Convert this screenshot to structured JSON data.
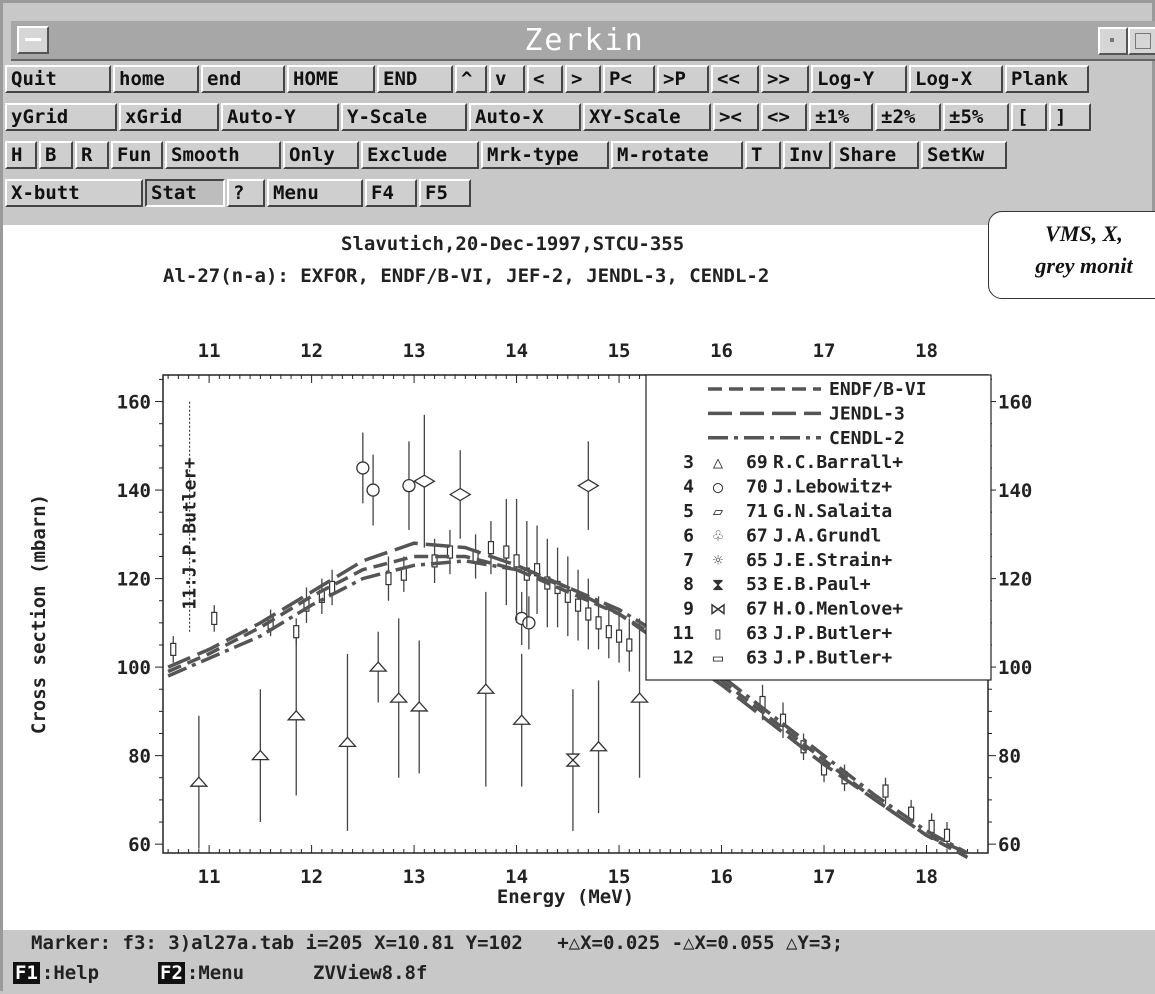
{
  "window": {
    "title": "Zerkin"
  },
  "toolbar": {
    "row1": [
      "Quit",
      "home",
      "end",
      "HOME",
      "END",
      "^",
      "v",
      "<",
      ">",
      "P<",
      ">P",
      "<<",
      ">>",
      "Log-Y",
      "Log-X",
      "Plank"
    ],
    "row2": [
      "yGrid",
      "xGrid",
      "Auto-Y",
      "Y-Scale",
      "Auto-X",
      "XY-Scale",
      "><",
      "<>",
      "±1%",
      "±2%",
      "±5%",
      "[",
      "]"
    ],
    "row3": [
      "H",
      "B",
      "R",
      "Fun",
      "Smooth",
      "Only",
      "Exclude",
      "Mrk-type",
      "M-rotate",
      "T",
      "Inv",
      "Share",
      "SetKw"
    ],
    "row4": [
      "X-butt",
      "Stat",
      "?",
      "Menu",
      "F4",
      "F5"
    ]
  },
  "plot": {
    "header1": "Slavutich,20-Dec-1997,STCU-355",
    "header2": "Al-27(n-a): EXFOR, ENDF/B-VI, JEF-2, JENDL-3, CENDL-2",
    "vertical_marker_label": "11:J.P.Butler+",
    "note": [
      "VMS, X,",
      "grey monit"
    ]
  },
  "chart_data": {
    "type": "scatter",
    "xlabel": "Energy (MeV)",
    "ylabel": "Cross section (mbarn)",
    "xlim": [
      10.55,
      18.6
    ],
    "ylim": [
      58,
      166
    ],
    "x_ticks": [
      "11",
      "12",
      "13",
      "14",
      "15",
      "16",
      "17",
      "18"
    ],
    "y_ticks": [
      "60",
      "80",
      "100",
      "120",
      "140",
      "160"
    ],
    "series": [
      {
        "name": "ENDF/B-VI",
        "style": "dash",
        "x": [
          10.6,
          11.0,
          11.5,
          12.0,
          12.5,
          13.0,
          13.5,
          14.0,
          14.5,
          15.0,
          15.5,
          16.0,
          16.5,
          17.0,
          17.5,
          18.0,
          18.4
        ],
        "y": [
          99,
          103,
          109,
          116,
          122,
          125,
          125,
          122,
          117,
          112,
          105,
          97,
          88,
          79,
          70,
          62,
          57
        ]
      },
      {
        "name": "JENDL-3",
        "style": "longdash",
        "x": [
          10.6,
          11.0,
          11.5,
          12.0,
          12.5,
          13.0,
          13.5,
          14.0,
          14.5,
          15.0,
          15.5,
          16.0,
          16.5,
          17.0,
          17.5,
          18.0,
          18.4
        ],
        "y": [
          100,
          104,
          110,
          117,
          124,
          128,
          127,
          123,
          118,
          112,
          104,
          96,
          87,
          78,
          70,
          62,
          58
        ]
      },
      {
        "name": "CENDL-2",
        "style": "dashdot",
        "x": [
          10.6,
          11.0,
          11.5,
          12.0,
          12.5,
          13.0,
          13.5,
          14.0,
          14.5,
          15.0,
          15.5,
          16.0,
          16.5,
          17.0,
          17.5,
          18.0,
          18.4
        ],
        "y": [
          98,
          102,
          107,
          114,
          120,
          123,
          124,
          122,
          118,
          113,
          106,
          98,
          89,
          80,
          71,
          63,
          58
        ]
      }
    ],
    "legend": [
      {
        "line": "dash",
        "label": "ENDF/B-VI"
      },
      {
        "line": "longdash",
        "label": "JENDL-3"
      },
      {
        "line": "dashdot",
        "label": "CENDL-2"
      },
      {
        "n": "3",
        "symbol": "△",
        "year": "69",
        "label": "R.C.Barrall+"
      },
      {
        "n": "4",
        "symbol": "○",
        "year": "70",
        "label": "J.Lebowitz+"
      },
      {
        "n": "5",
        "symbol": "▱",
        "year": "71",
        "label": "G.N.Salaita"
      },
      {
        "n": "6",
        "symbol": "♧",
        "year": "67",
        "label": "J.A.Grundl"
      },
      {
        "n": "7",
        "symbol": "☼",
        "year": "65",
        "label": "J.E.Strain+"
      },
      {
        "n": "8",
        "symbol": "⧗",
        "year": "53",
        "label": "E.B.Paul+"
      },
      {
        "n": "9",
        "symbol": "⋈",
        "year": "67",
        "label": "H.O.Menlove+"
      },
      {
        "n": "11",
        "symbol": "▯",
        "year": "63",
        "label": "J.P.Butler+"
      },
      {
        "n": "12",
        "symbol": "▭",
        "year": "63",
        "label": "J.P.Butler+"
      }
    ],
    "points": [
      {
        "x": 10.9,
        "y": 74,
        "e": 15,
        "s": "tri"
      },
      {
        "x": 11.5,
        "y": 80,
        "e": 15,
        "s": "tri"
      },
      {
        "x": 11.85,
        "y": 89,
        "e": 18,
        "s": "tri"
      },
      {
        "x": 12.35,
        "y": 83,
        "e": 20,
        "s": "tri"
      },
      {
        "x": 12.85,
        "y": 93,
        "e": 18,
        "s": "tri"
      },
      {
        "x": 13.05,
        "y": 91,
        "e": 15,
        "s": "tri"
      },
      {
        "x": 13.7,
        "y": 95,
        "e": 22,
        "s": "tri"
      },
      {
        "x": 14.05,
        "y": 88,
        "e": 15,
        "s": "tri"
      },
      {
        "x": 14.8,
        "y": 82,
        "e": 15,
        "s": "tri"
      },
      {
        "x": 15.2,
        "y": 93,
        "e": 18,
        "s": "tri"
      },
      {
        "x": 12.5,
        "y": 145,
        "e": 8,
        "s": "circ"
      },
      {
        "x": 12.6,
        "y": 140,
        "e": 8,
        "s": "circ"
      },
      {
        "x": 12.95,
        "y": 141,
        "e": 10,
        "s": "circ"
      },
      {
        "x": 14.05,
        "y": 111,
        "e": 6,
        "s": "circ"
      },
      {
        "x": 14.12,
        "y": 110,
        "e": 6,
        "s": "circ"
      },
      {
        "x": 13.1,
        "y": 142,
        "e": 15,
        "s": "dia"
      },
      {
        "x": 13.45,
        "y": 139,
        "e": 10,
        "s": "dia"
      },
      {
        "x": 14.7,
        "y": 141,
        "e": 10,
        "s": "dia"
      },
      {
        "x": 10.65,
        "y": 104,
        "e": 3,
        "s": "bar"
      },
      {
        "x": 11.05,
        "y": 111,
        "e": 3,
        "s": "bar"
      },
      {
        "x": 11.85,
        "y": 108,
        "e": 3,
        "s": "bar"
      },
      {
        "x": 12.65,
        "y": 100,
        "e": 8,
        "s": "tri"
      },
      {
        "x": 14.55,
        "y": 79,
        "e": 16,
        "s": "hour"
      },
      {
        "x": 16.8,
        "y": 82,
        "e": 3,
        "s": "bar"
      },
      {
        "x": 17.2,
        "y": 75,
        "e": 3,
        "s": "bar"
      },
      {
        "x": 17.6,
        "y": 72,
        "e": 3,
        "s": "bar"
      },
      {
        "x": 17.85,
        "y": 67,
        "e": 3,
        "s": "bar"
      },
      {
        "x": 18.05,
        "y": 64,
        "e": 3,
        "s": "bar"
      },
      {
        "x": 18.2,
        "y": 62,
        "e": 3,
        "s": "bar"
      },
      {
        "x": 16.6,
        "y": 88,
        "e": 4,
        "s": "bar"
      },
      {
        "x": 16.4,
        "y": 92,
        "e": 4,
        "s": "bar"
      },
      {
        "x": 17.0,
        "y": 77,
        "e": 3,
        "s": "bar"
      },
      {
        "x": 12.2,
        "y": 118,
        "e": 4,
        "s": "bar"
      },
      {
        "x": 12.1,
        "y": 116,
        "e": 4,
        "s": "bar"
      },
      {
        "x": 13.2,
        "y": 124,
        "e": 5,
        "s": "bar"
      },
      {
        "x": 13.35,
        "y": 126,
        "e": 5,
        "s": "bar"
      },
      {
        "x": 13.6,
        "y": 125,
        "e": 5,
        "s": "bar"
      },
      {
        "x": 13.75,
        "y": 127,
        "e": 6,
        "s": "bar"
      },
      {
        "x": 13.9,
        "y": 126,
        "e": 12,
        "s": "bar"
      },
      {
        "x": 14.0,
        "y": 124,
        "e": 14,
        "s": "bar"
      },
      {
        "x": 14.1,
        "y": 121,
        "e": 12,
        "s": "bar"
      },
      {
        "x": 14.2,
        "y": 122,
        "e": 10,
        "s": "bar"
      },
      {
        "x": 14.3,
        "y": 119,
        "e": 10,
        "s": "bar"
      },
      {
        "x": 14.4,
        "y": 118,
        "e": 9,
        "s": "bar"
      },
      {
        "x": 14.5,
        "y": 116,
        "e": 9,
        "s": "bar"
      },
      {
        "x": 14.6,
        "y": 114,
        "e": 8,
        "s": "bar"
      },
      {
        "x": 14.7,
        "y": 112,
        "e": 8,
        "s": "bar"
      },
      {
        "x": 14.8,
        "y": 110,
        "e": 6,
        "s": "bar"
      },
      {
        "x": 14.9,
        "y": 108,
        "e": 6,
        "s": "bar"
      },
      {
        "x": 15.0,
        "y": 107,
        "e": 6,
        "s": "bar"
      },
      {
        "x": 15.1,
        "y": 105,
        "e": 6,
        "s": "bar"
      },
      {
        "x": 12.9,
        "y": 121,
        "e": 4,
        "s": "bar"
      },
      {
        "x": 12.75,
        "y": 120,
        "e": 5,
        "s": "bar"
      },
      {
        "x": 11.95,
        "y": 114,
        "e": 4,
        "s": "bar"
      },
      {
        "x": 11.6,
        "y": 110,
        "e": 3,
        "s": "bar"
      }
    ]
  },
  "status": {
    "marker": "Marker: f3: 3)al27a.tab i=205 X=10.81 Y=102   +△X=0.025 -△X=0.055 △Y=3;",
    "f1_key": "F1",
    "f1_label": ":Help",
    "f2_key": "F2",
    "f2_label": ":Menu",
    "version": "ZVView8.8f"
  }
}
